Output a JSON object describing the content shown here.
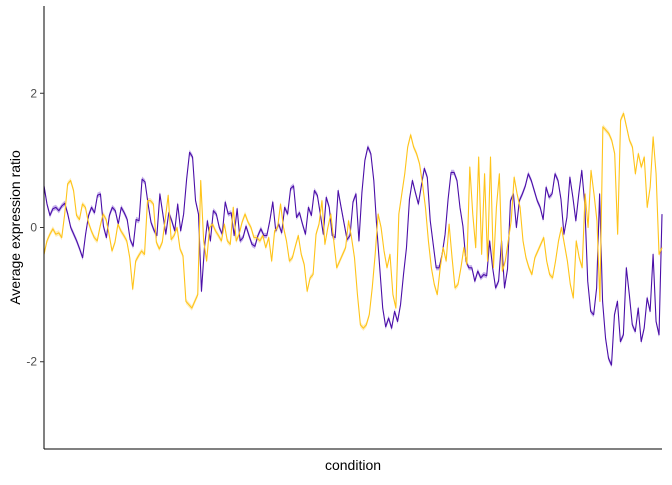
{
  "chart_data": {
    "type": "line",
    "xlabel": "condition",
    "ylabel": "Average expression ratio",
    "ylim": [
      -3.3,
      3.3
    ],
    "yticks": [
      -2,
      0,
      2
    ],
    "x_tick_labels": "none",
    "grid": false,
    "legend": "none",
    "ribbon": true,
    "series": [
      {
        "color": "#4B0FA8",
        "band_color": "#B69CE6",
        "values": [
          0.62,
          0.35,
          0.18,
          0.28,
          0.3,
          0.25,
          0.32,
          0.36,
          0.2,
          0.0,
          -0.1,
          -0.2,
          -0.32,
          -0.45,
          -0.1,
          0.18,
          0.3,
          0.22,
          0.48,
          0.5,
          0.02,
          -0.15,
          0.18,
          0.3,
          0.25,
          0.05,
          0.3,
          0.22,
          0.12,
          -0.18,
          -0.28,
          0.12,
          0.1,
          0.72,
          0.68,
          0.36,
          0.08,
          -0.04,
          -0.12,
          0.5,
          0.2,
          -0.1,
          0.22,
          0.1,
          -0.05,
          0.35,
          -0.05,
          0.2,
          0.72,
          1.12,
          1.05,
          0.4,
          0.2,
          -0.95,
          -0.3,
          0.1,
          -0.2,
          0.25,
          0.2,
          0.0,
          -0.1,
          0.38,
          0.2,
          0.22,
          -0.12,
          0.28,
          -0.2,
          -0.15,
          0.02,
          -0.12,
          -0.25,
          -0.28,
          -0.12,
          -0.02,
          -0.12,
          -0.12,
          0.1,
          0.38,
          -0.05,
          0.05,
          -0.08,
          0.3,
          0.2,
          0.58,
          0.62,
          0.15,
          0.22,
          0.05,
          -0.1,
          0.3,
          0.18,
          0.55,
          0.48,
          0.2,
          -0.1,
          0.45,
          0.3,
          -0.12,
          -0.15,
          0.55,
          0.3,
          0.06,
          -0.18,
          -0.12,
          0.38,
          0.5,
          -0.2,
          0.52,
          1.0,
          1.2,
          1.1,
          0.7,
          0.0,
          -0.6,
          -1.2,
          -1.48,
          -1.35,
          -1.5,
          -1.25,
          -1.4,
          -1.15,
          -0.7,
          -0.3,
          0.42,
          0.7,
          0.52,
          0.35,
          0.62,
          0.88,
          0.75,
          0.1,
          -0.25,
          -0.6,
          -0.6,
          -0.4,
          -0.1,
          0.42,
          0.82,
          0.82,
          0.7,
          0.3,
          0.02,
          -0.5,
          -0.6,
          -0.6,
          -0.8,
          -0.65,
          -0.75,
          -0.7,
          -0.72,
          -0.2,
          -0.6,
          -0.9,
          -0.8,
          -0.2,
          -0.9,
          -0.62,
          0.4,
          0.5,
          0.0,
          0.4,
          0.5,
          0.62,
          0.8,
          0.7,
          0.55,
          0.4,
          0.3,
          0.12,
          0.6,
          0.45,
          0.5,
          0.8,
          0.7,
          0.42,
          -0.1,
          0.15,
          0.75,
          0.45,
          0.1,
          0.5,
          0.85,
          0.35,
          -0.8,
          -1.25,
          -1.3,
          -0.9,
          0.5,
          -1.1,
          -1.65,
          -1.95,
          -2.05,
          -1.3,
          -1.1,
          -1.7,
          -1.6,
          -0.6,
          -1.0,
          -1.45,
          -1.55,
          -1.2,
          -1.7,
          -1.5,
          -1.05,
          -1.25,
          -0.4,
          -1.4,
          -1.6,
          0.2
        ]
      },
      {
        "color": "#FFC41A",
        "band_color": "#FFE9A6",
        "values": [
          -0.4,
          -0.2,
          -0.1,
          -0.02,
          -0.1,
          -0.08,
          -0.15,
          0.2,
          0.65,
          0.7,
          0.55,
          0.18,
          0.12,
          0.35,
          0.3,
          0.08,
          -0.05,
          -0.15,
          -0.2,
          0.02,
          0.2,
          0.12,
          -0.1,
          -0.35,
          -0.22,
          0.05,
          -0.05,
          -0.12,
          -0.2,
          -0.45,
          -0.92,
          -0.5,
          -0.42,
          -0.35,
          -0.4,
          0.4,
          0.4,
          0.35,
          -0.22,
          -0.32,
          -0.22,
          0.12,
          0.48,
          -0.18,
          -0.12,
          0.0,
          -0.32,
          -0.42,
          -1.1,
          -1.15,
          -1.2,
          -1.1,
          -1.0,
          0.7,
          -0.2,
          -0.5,
          0.0,
          0.05,
          -0.05,
          -0.12,
          -0.2,
          0.05,
          -0.2,
          -0.25,
          0.3,
          -0.2,
          -0.1,
          0.08,
          0.2,
          0.08,
          0.0,
          -0.15,
          -0.15,
          -0.2,
          -0.12,
          -0.3,
          -0.15,
          -0.5,
          -0.05,
          0.0,
          0.35,
          0.0,
          -0.2,
          -0.5,
          -0.45,
          -0.28,
          -0.12,
          -0.4,
          -0.55,
          -0.95,
          -0.75,
          -0.7,
          -0.1,
          0.05,
          0.4,
          -0.25,
          0.0,
          0.2,
          -0.2,
          -0.6,
          -0.5,
          -0.4,
          -0.3,
          0.1,
          -0.15,
          -0.45,
          -1.0,
          -1.45,
          -1.5,
          -1.45,
          -1.3,
          -0.9,
          -0.4,
          0.2,
          0.0,
          -0.35,
          -0.6,
          -0.4,
          -1.0,
          -1.2,
          0.2,
          0.5,
          0.8,
          1.2,
          1.38,
          1.2,
          1.1,
          0.95,
          0.65,
          0.3,
          -0.2,
          -0.6,
          -0.85,
          -1.0,
          -0.6,
          -0.3,
          -0.5,
          0.05,
          -0.45,
          -0.9,
          -0.85,
          -0.6,
          -0.3,
          -0.55,
          0.9,
          0.2,
          -0.3,
          1.05,
          -0.4,
          0.8,
          -0.5,
          1.05,
          -0.6,
          0.3,
          0.8,
          -0.65,
          -0.5,
          -0.2,
          0.1,
          0.75,
          0.5,
          0.3,
          -0.2,
          -0.45,
          -0.6,
          -0.7,
          -0.45,
          -0.35,
          -0.25,
          -0.15,
          -0.5,
          -0.7,
          -0.75,
          -0.5,
          -0.2,
          0.0,
          -0.25,
          -0.5,
          -0.85,
          -1.05,
          -0.2,
          -0.45,
          -0.6,
          0.5,
          0.0,
          0.85,
          0.5,
          0.1,
          -1.1,
          1.5,
          1.45,
          1.4,
          1.3,
          1.1,
          -0.1,
          1.6,
          1.7,
          1.5,
          1.3,
          1.2,
          0.8,
          1.1,
          0.9,
          1.05,
          0.3,
          0.6,
          1.35,
          0.8,
          -0.4,
          -0.3
        ]
      }
    ]
  }
}
